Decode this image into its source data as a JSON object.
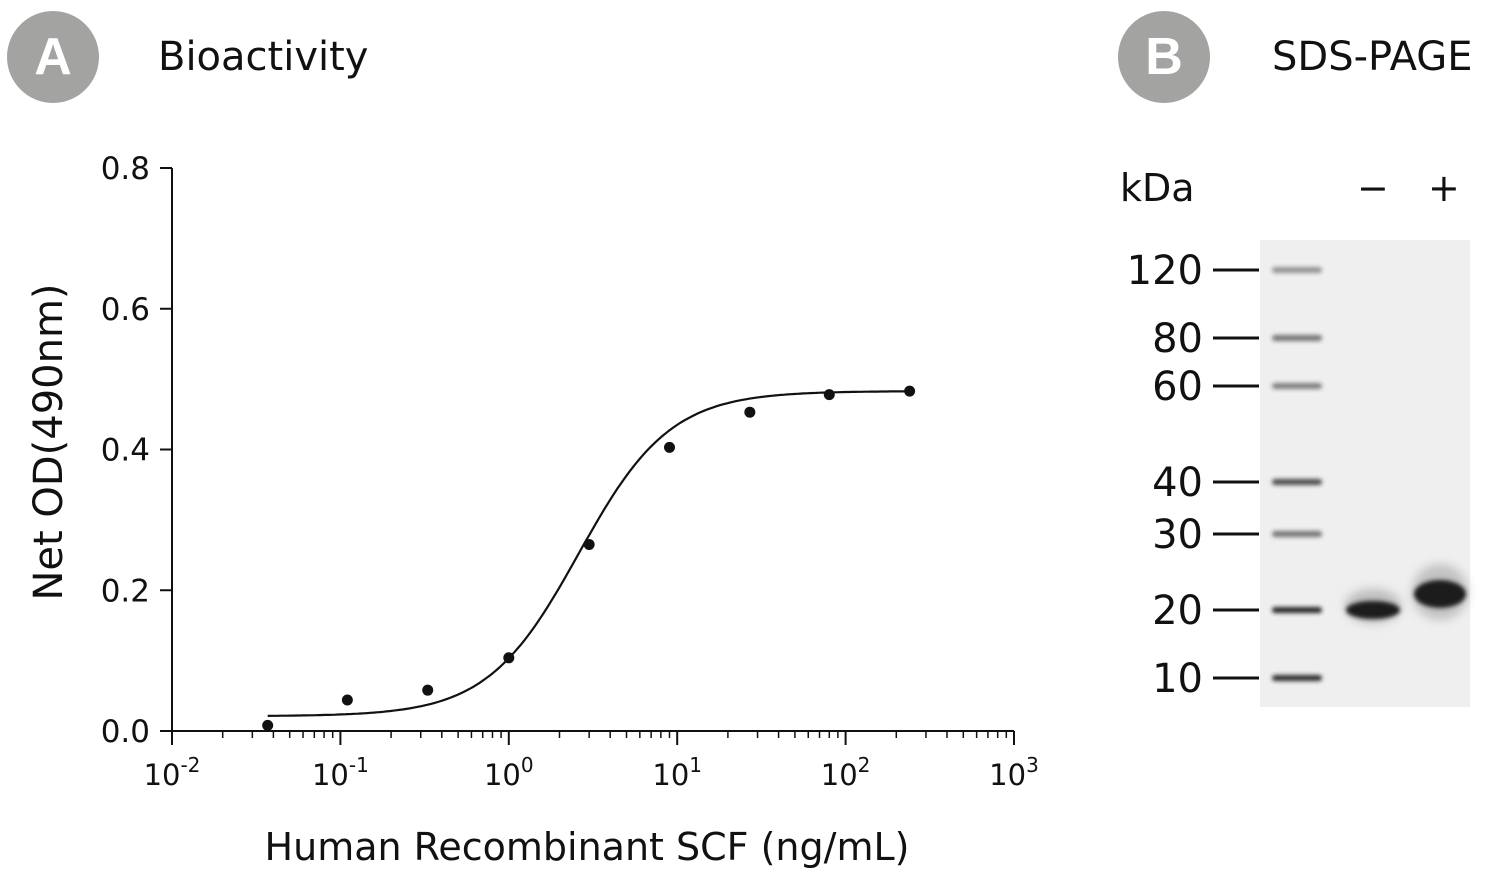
{
  "panel_a": {
    "badge": "A",
    "title": "Bioactivity"
  },
  "panel_b": {
    "badge": "B",
    "title": "SDS-PAGE"
  },
  "chart_data": {
    "type": "scatter",
    "title": "",
    "xlabel": "Human Recombinant SCF (ng/mL)",
    "ylabel": "Net OD(490nm)",
    "x_scale": "log",
    "xlim": [
      0.01,
      1000
    ],
    "ylim": [
      0,
      0.8
    ],
    "y_ticks": [
      "0.0",
      "0.2",
      "0.4",
      "0.6",
      "0.8"
    ],
    "x_ticks": [
      {
        "base": "10",
        "exp": "-2"
      },
      {
        "base": "10",
        "exp": "-1"
      },
      {
        "base": "10",
        "exp": "0"
      },
      {
        "base": "10",
        "exp": "1"
      },
      {
        "base": "10",
        "exp": "2"
      },
      {
        "base": "10",
        "exp": "3"
      }
    ],
    "series": [
      {
        "x": [
          0.037,
          0.11,
          0.33,
          1.0,
          3.0,
          9.0,
          27.0,
          80.0,
          240.0
        ],
        "y": [
          0.008,
          0.044,
          0.058,
          0.104,
          0.265,
          0.403,
          0.453,
          0.478,
          0.483
        ]
      }
    ],
    "fit": {
      "model": "4PL",
      "bottom": 0.021,
      "top": 0.483,
      "ec50": 2.6,
      "hill": 1.6
    },
    "grid": false,
    "legend": "none"
  },
  "gel": {
    "unit_label": "kDa",
    "lane_labels": [
      "−",
      "+"
    ],
    "markers": [
      "120",
      "80",
      "60",
      "40",
      "30",
      "20",
      "10"
    ]
  }
}
